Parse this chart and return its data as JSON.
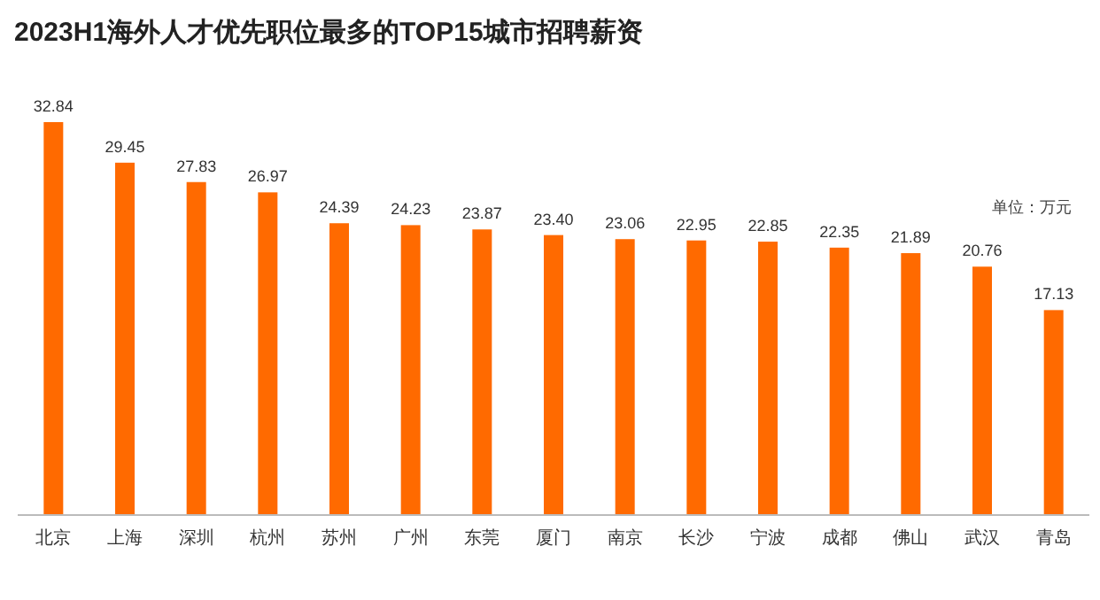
{
  "chart_data": {
    "type": "bar",
    "title": "2023H1海外人才优先职位最多的TOP15城市招聘薪资",
    "categories": [
      "北京",
      "上海",
      "深圳",
      "杭州",
      "苏州",
      "广州",
      "东莞",
      "厦门",
      "南京",
      "长沙",
      "宁波",
      "成都",
      "佛山",
      "武汉",
      "青岛"
    ],
    "values": [
      32.84,
      29.45,
      27.83,
      26.97,
      24.39,
      24.23,
      23.87,
      23.4,
      23.06,
      22.95,
      22.85,
      22.35,
      21.89,
      20.76,
      17.13
    ],
    "value_labels": [
      "32.84",
      "29.45",
      "27.83",
      "26.97",
      "24.39",
      "24.23",
      "23.87",
      "23.40",
      "23.06",
      "22.95",
      "22.85",
      "22.35",
      "21.89",
      "20.76",
      "17.13"
    ],
    "color": "#ff6a00",
    "annotations": [
      "单位：万元"
    ]
  }
}
